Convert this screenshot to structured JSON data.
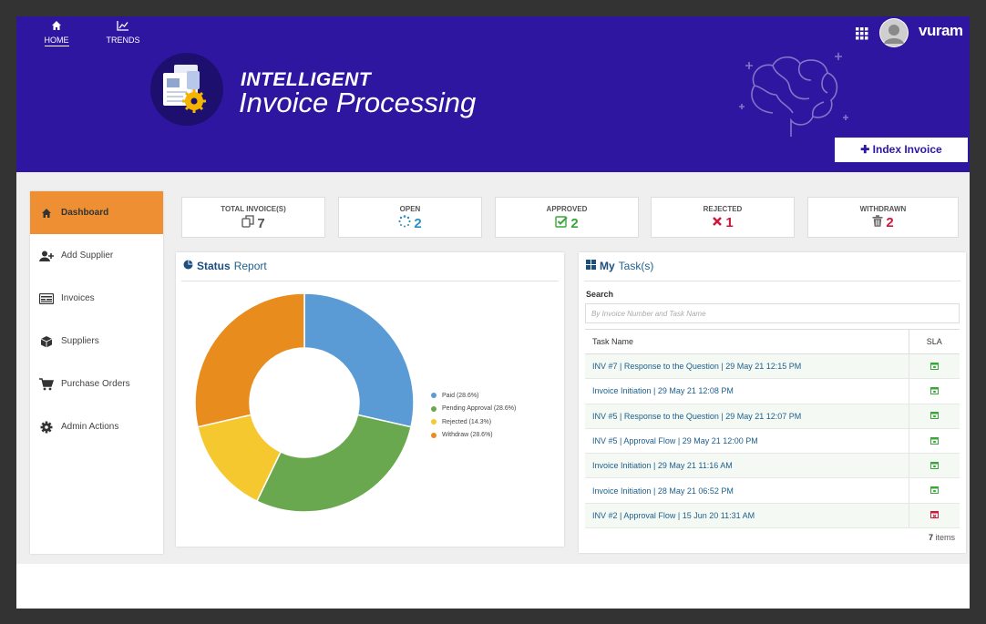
{
  "nav": {
    "home_label": "HOME",
    "trends_label": "TRENDS"
  },
  "header": {
    "title_line1": "INTELLIGENT",
    "title_line2": "Invoice Processing",
    "brand_name": "vuram",
    "index_invoice_label": "Index Invoice",
    "colors": {
      "banner": "#2f16a0",
      "accent": "#ee8f33"
    }
  },
  "sidebar": {
    "items": [
      {
        "label": "Dashboard",
        "icon": "home-icon",
        "active": true
      },
      {
        "label": "Add Supplier",
        "icon": "add-user-icon"
      },
      {
        "label": "Invoices",
        "icon": "invoice-icon"
      },
      {
        "label": "Suppliers",
        "icon": "box-icon"
      },
      {
        "label": "Purchase Orders",
        "icon": "cart-icon"
      },
      {
        "label": "Admin Actions",
        "icon": "gear-icon"
      }
    ]
  },
  "stats": [
    {
      "label": "TOTAL INVOICE(S)",
      "value": "7",
      "icon": "copy-icon",
      "color": "#555555"
    },
    {
      "label": "OPEN",
      "value": "2",
      "icon": "spinner-icon",
      "color": "#2a8fc4"
    },
    {
      "label": "APPROVED",
      "value": "2",
      "icon": "check-square-icon",
      "color": "#3aa63a"
    },
    {
      "label": "REJECTED",
      "value": "1",
      "icon": "x-icon",
      "color": "#d0183a"
    },
    {
      "label": "WITHDRAWN",
      "value": "2",
      "icon": "trash-icon",
      "color": "#d0183a"
    }
  ],
  "status_report": {
    "title_bold": "Status",
    "title_rest": "Report"
  },
  "chart_data": {
    "type": "pie",
    "donut": true,
    "categories": [
      "Paid",
      "Pending Approval",
      "Rejected",
      "Withdraw"
    ],
    "values": [
      28.6,
      28.6,
      14.3,
      28.6
    ],
    "colors": [
      "#5b9bd5",
      "#6aa84f",
      "#f4c82e",
      "#e88c1e"
    ],
    "legend_labels": [
      "Paid (28.6%)",
      "Pending Approval (28.6%)",
      "Rejected (14.3%)",
      "Withdraw (28.6%)"
    ],
    "legend_position": "right"
  },
  "tasks": {
    "title_bold": "My",
    "title_rest": "Task(s)",
    "search_label": "Search",
    "search_placeholder": "By Invoice Number and Task Name",
    "col_task": "Task Name",
    "col_sla": "SLA",
    "rows": [
      {
        "name": "INV #7 | Response to the Question | 29 May 21 12:15 PM",
        "sla": "ok"
      },
      {
        "name": "Invoice Initiation | 29 May 21 12:08 PM",
        "sla": "ok"
      },
      {
        "name": "INV #5 | Response to the Question | 29 May 21 12:07 PM",
        "sla": "ok"
      },
      {
        "name": "INV #5 | Approval Flow | 29 May 21 12:00 PM",
        "sla": "ok"
      },
      {
        "name": "Invoice Initiation | 29 May 21 11:16 AM",
        "sla": "ok"
      },
      {
        "name": "Invoice Initiation | 28 May 21 06:52 PM",
        "sla": "ok"
      },
      {
        "name": "INV #2 | Approval Flow | 15 Jun 20 11:31 AM",
        "sla": "overdue"
      }
    ],
    "count": "7",
    "count_suffix": "items"
  }
}
